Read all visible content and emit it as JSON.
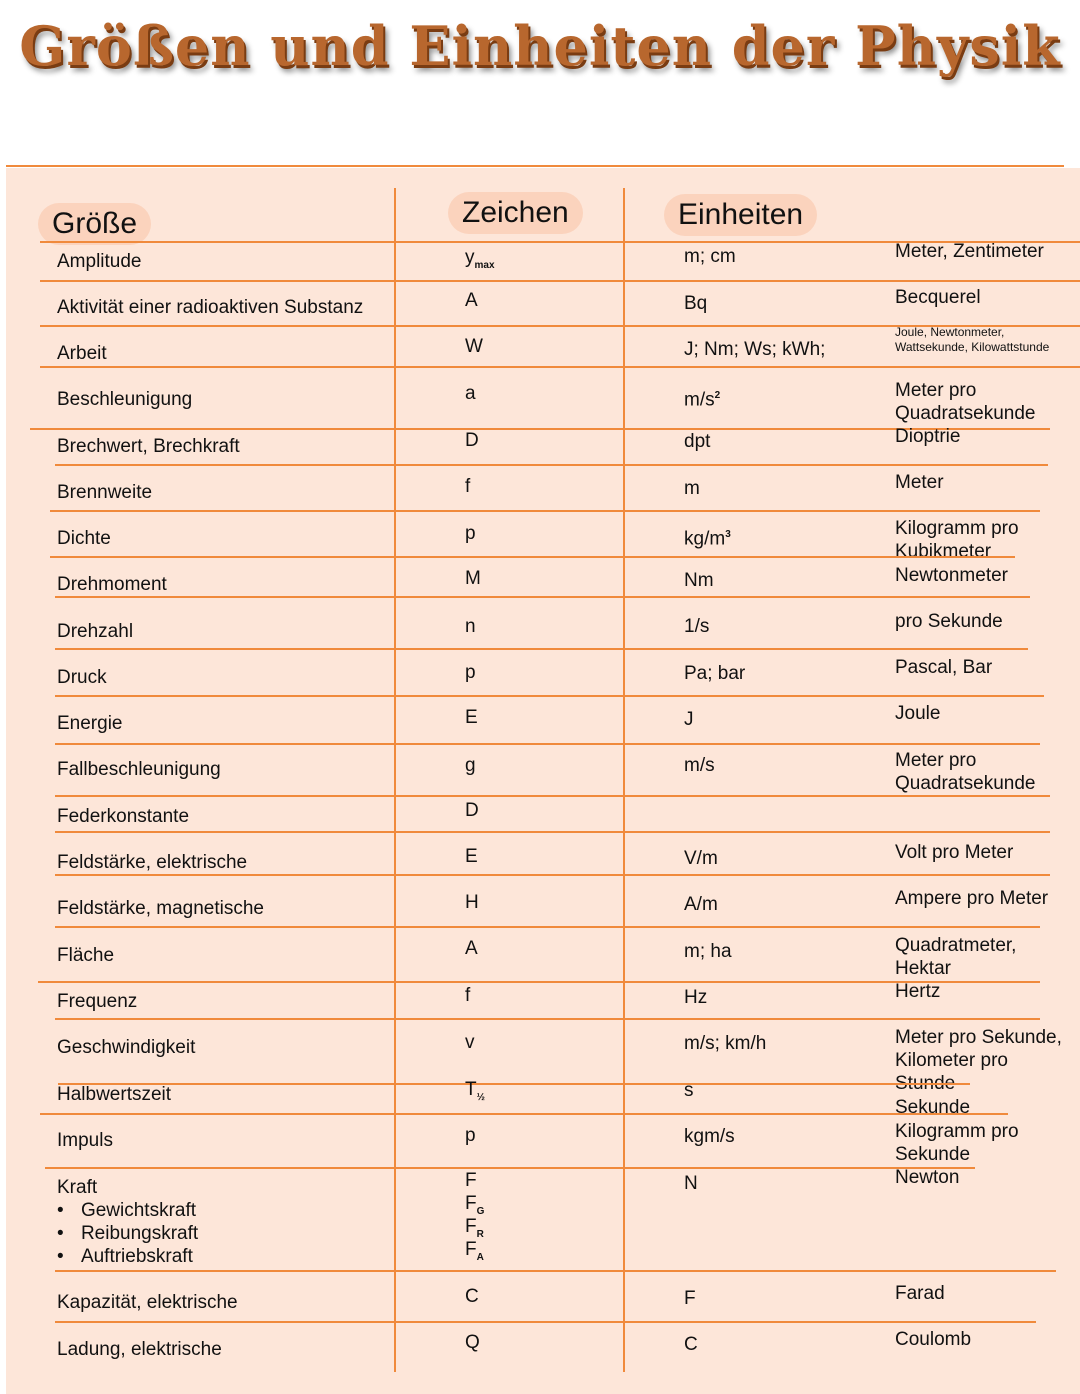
{
  "title": "Größen und Einheiten der Physik",
  "headers": {
    "quantity": "Größe",
    "symbol": "Zeichen",
    "units": "Einheiten"
  },
  "colors": {
    "line": "#f08a3c",
    "background": "#fde6d9",
    "pill": "#fbd3bd",
    "title": "#b8672e"
  },
  "rows": [
    {
      "quantity": "Amplitude",
      "symbol": "y",
      "symbol_sub": "max",
      "unit": "m; cm",
      "unit_name": "Meter, Zentimeter"
    },
    {
      "quantity": "Aktivität einer radioaktiven Substanz",
      "symbol": "A",
      "unit": "Bq",
      "unit_name": "Becquerel"
    },
    {
      "quantity": "Arbeit",
      "symbol": "W",
      "unit": "J; Nm; Ws; kWh;",
      "unit_name": "Joule, Newtonmeter,\nWattsekunde, Kilowattstunde",
      "small": true
    },
    {
      "quantity": "Beschleunigung",
      "symbol": "a",
      "unit": "m/s",
      "unit_sup": "2",
      "unit_name": "Meter pro\nQuadratsekunde"
    },
    {
      "quantity": "Brechwert, Brechkraft",
      "symbol": "D",
      "unit": "dpt",
      "unit_name": "Dioptrie"
    },
    {
      "quantity": "Brennweite",
      "symbol": "f",
      "unit": "m",
      "unit_name": "Meter"
    },
    {
      "quantity": "Dichte",
      "symbol": "p",
      "unit": "kg/m",
      "unit_sup": "3",
      "unit_name": "Kilogramm pro\nKubikmeter"
    },
    {
      "quantity": "Drehmoment",
      "symbol": "M",
      "unit": "Nm",
      "unit_name": "Newtonmeter"
    },
    {
      "quantity": "Drehzahl",
      "symbol": "n",
      "unit": "1/s",
      "unit_name": "pro Sekunde"
    },
    {
      "quantity": "Druck",
      "symbol": "p",
      "unit": "Pa; bar",
      "unit_name": "Pascal, Bar"
    },
    {
      "quantity": "Energie",
      "symbol": "E",
      "unit": "J",
      "unit_name": "Joule"
    },
    {
      "quantity": "Fallbeschleunigung",
      "symbol": "g",
      "unit": "m/s",
      "unit_name": "Meter pro\nQuadratsekunde"
    },
    {
      "quantity": "Federkonstante",
      "symbol": "D",
      "unit": "",
      "unit_name": ""
    },
    {
      "quantity": "Feldstärke, elektrische",
      "symbol": "E",
      "unit": "V/m",
      "unit_name": "Volt pro Meter"
    },
    {
      "quantity": "Feldstärke, magnetische",
      "symbol": "H",
      "unit": "A/m",
      "unit_name": "Ampere pro Meter"
    },
    {
      "quantity": "Fläche",
      "symbol": "A",
      "unit": "m; ha",
      "unit_name": "Quadratmeter,\nHektar"
    },
    {
      "quantity": "Frequenz",
      "symbol": "f",
      "unit": "Hz",
      "unit_name": "Hertz"
    },
    {
      "quantity": "Geschwindigkeit",
      "symbol": "v",
      "unit": "m/s; km/h",
      "unit_name": "Meter pro Sekunde,\nKilometer pro\nStunde"
    },
    {
      "quantity": "Halbwertszeit",
      "symbol": "T",
      "symbol_sub": "½",
      "unit": "s",
      "unit_name": "Sekunde"
    },
    {
      "quantity": "Impuls",
      "symbol": "p",
      "unit": "kgm/s",
      "unit_name": "Kilogramm pro\nSekunde"
    },
    {
      "quantity": "Kraft",
      "bullets": [
        "Gewichtskraft",
        "Reibungskraft",
        "Auftriebskraft"
      ],
      "symbol": "F",
      "symbol_extra": [
        [
          "F",
          "G"
        ],
        [
          "F",
          "R"
        ],
        [
          "F",
          "A"
        ]
      ],
      "unit": "N",
      "unit_name": "Newton"
    },
    {
      "quantity": "Kapazität, elektrische",
      "symbol": "C",
      "unit": "F",
      "unit_name": "Farad"
    },
    {
      "quantity": "Ladung, elektrische",
      "symbol": "Q",
      "unit": "C",
      "unit_name": "Coulomb"
    }
  ]
}
